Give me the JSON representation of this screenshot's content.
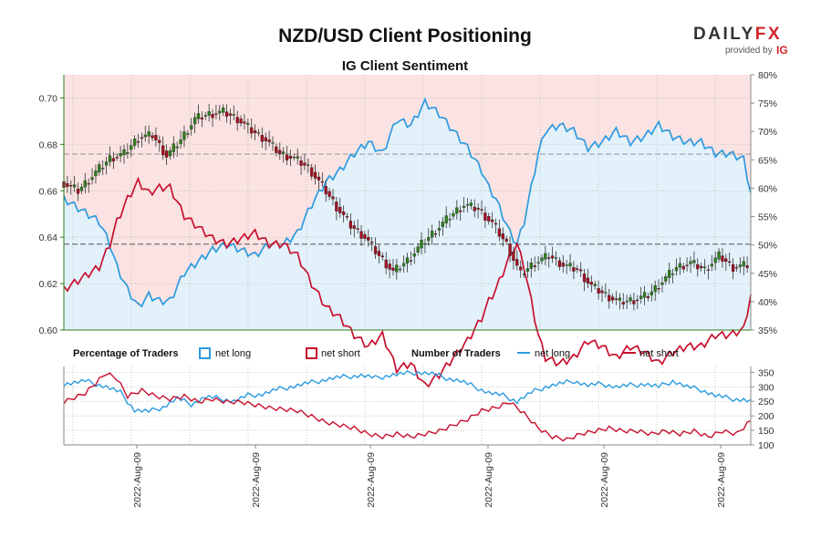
{
  "header": {
    "title": "NZD/USD Client Positioning",
    "subtitle": "IG Client Sentiment"
  },
  "logo": {
    "brand_a": "DAILY",
    "brand_b": "FX",
    "provided_by": "provided by",
    "ig": "IG"
  },
  "colors": {
    "long": "#2b9be0",
    "short": "#c8102e",
    "long_fill": "#e3f1fb",
    "short_fill": "#fbe3e3",
    "price_axis": "#2e7d1e",
    "candle_up": "#2e7d1e",
    "candle_down": "#a01020"
  },
  "legend": {
    "percentage_title": "Percentage of Traders",
    "net_long": "net long",
    "net_short": "net short",
    "number_title": "Number of Traders"
  },
  "chart_data": [
    {
      "type": "candlestick+line",
      "title": "NZD/USD Client Positioning",
      "subtitle": "IG Client Sentiment",
      "price_axis": {
        "ticks": [
          "0.60",
          "0.62",
          "0.64",
          "0.66",
          "0.68",
          "0.70"
        ],
        "range": [
          0.6,
          0.71
        ]
      },
      "percent_axis": {
        "ticks": [
          "35%",
          "40%",
          "45%",
          "50%",
          "55%",
          "60%",
          "65%",
          "70%",
          "75%",
          "80%"
        ],
        "range": [
          35,
          80
        ]
      },
      "reference_lines": {
        "price": 0.637,
        "percent_long": 66
      },
      "grid": true,
      "x_labels": [
        "2022-Aug-09",
        "2022-Aug-09",
        "2022-Aug-09",
        "2022-Aug-09",
        "2022-Aug-09",
        "2022-Aug-09"
      ],
      "price_keypoints": [
        [
          0,
          0.664
        ],
        [
          5,
          0.66
        ],
        [
          10,
          0.668
        ],
        [
          14,
          0.674
        ],
        [
          18,
          0.676
        ],
        [
          22,
          0.683
        ],
        [
          26,
          0.684
        ],
        [
          30,
          0.675
        ],
        [
          34,
          0.682
        ],
        [
          38,
          0.691
        ],
        [
          42,
          0.693
        ],
        [
          46,
          0.694
        ],
        [
          50,
          0.691
        ],
        [
          54,
          0.686
        ],
        [
          58,
          0.682
        ],
        [
          62,
          0.676
        ],
        [
          66,
          0.674
        ],
        [
          70,
          0.67
        ],
        [
          74,
          0.662
        ],
        [
          78,
          0.653
        ],
        [
          82,
          0.645
        ],
        [
          86,
          0.64
        ],
        [
          90,
          0.632
        ],
        [
          94,
          0.625
        ],
        [
          98,
          0.63
        ],
        [
          102,
          0.637
        ],
        [
          106,
          0.643
        ],
        [
          110,
          0.649
        ],
        [
          114,
          0.654
        ],
        [
          118,
          0.652
        ],
        [
          122,
          0.646
        ],
        [
          126,
          0.637
        ],
        [
          130,
          0.624
        ],
        [
          134,
          0.629
        ],
        [
          138,
          0.632
        ],
        [
          142,
          0.628
        ],
        [
          146,
          0.626
        ],
        [
          150,
          0.619
        ],
        [
          154,
          0.615
        ],
        [
          158,
          0.612
        ],
        [
          162,
          0.613
        ],
        [
          166,
          0.615
        ],
        [
          170,
          0.621
        ],
        [
          174,
          0.627
        ],
        [
          178,
          0.629
        ],
        [
          182,
          0.626
        ],
        [
          186,
          0.632
        ],
        [
          190,
          0.627
        ],
        [
          194,
          0.628
        ]
      ],
      "percent_long_keypoints": [
        [
          0,
          58
        ],
        [
          5,
          56
        ],
        [
          10,
          54
        ],
        [
          13,
          50
        ],
        [
          15,
          46
        ],
        [
          18,
          42
        ],
        [
          21,
          39
        ],
        [
          24,
          41
        ],
        [
          27,
          40
        ],
        [
          30,
          40
        ],
        [
          34,
          45
        ],
        [
          38,
          47
        ],
        [
          42,
          49
        ],
        [
          46,
          50
        ],
        [
          50,
          49
        ],
        [
          54,
          48
        ],
        [
          58,
          50
        ],
        [
          62,
          50
        ],
        [
          66,
          52
        ],
        [
          70,
          57
        ],
        [
          74,
          61
        ],
        [
          78,
          63
        ],
        [
          82,
          66
        ],
        [
          86,
          68
        ],
        [
          90,
          66
        ],
        [
          94,
          72
        ],
        [
          98,
          71
        ],
        [
          102,
          75
        ],
        [
          106,
          73
        ],
        [
          110,
          70
        ],
        [
          114,
          67
        ],
        [
          118,
          63
        ],
        [
          120,
          60
        ],
        [
          122,
          58
        ],
        [
          124,
          55
        ],
        [
          126,
          52
        ],
        [
          128,
          50
        ],
        [
          130,
          54
        ],
        [
          132,
          60
        ],
        [
          134,
          66
        ],
        [
          136,
          70
        ],
        [
          140,
          71
        ],
        [
          144,
          70
        ],
        [
          148,
          67
        ],
        [
          152,
          68
        ],
        [
          156,
          70
        ],
        [
          160,
          68
        ],
        [
          164,
          69
        ],
        [
          168,
          71
        ],
        [
          172,
          69
        ],
        [
          176,
          68
        ],
        [
          180,
          68
        ],
        [
          184,
          66
        ],
        [
          188,
          66
        ],
        [
          192,
          65
        ],
        [
          194,
          59
        ]
      ],
      "percent_short_keypoints": [
        [
          0,
          42
        ],
        [
          5,
          44
        ],
        [
          10,
          46
        ],
        [
          13,
          50
        ],
        [
          15,
          54
        ],
        [
          18,
          58
        ],
        [
          21,
          61
        ],
        [
          24,
          59
        ],
        [
          27,
          60
        ],
        [
          30,
          60
        ],
        [
          34,
          55
        ],
        [
          38,
          53
        ],
        [
          42,
          51
        ],
        [
          46,
          50
        ],
        [
          50,
          51
        ],
        [
          54,
          52
        ],
        [
          58,
          50
        ],
        [
          62,
          50
        ],
        [
          66,
          48
        ],
        [
          70,
          43
        ],
        [
          74,
          39
        ],
        [
          78,
          37
        ],
        [
          82,
          34
        ],
        [
          86,
          32
        ],
        [
          90,
          34
        ],
        [
          94,
          28
        ],
        [
          98,
          29
        ],
        [
          102,
          25
        ],
        [
          106,
          27
        ],
        [
          110,
          30
        ],
        [
          114,
          33
        ],
        [
          118,
          37
        ],
        [
          120,
          40
        ],
        [
          122,
          42
        ],
        [
          124,
          45
        ],
        [
          126,
          48
        ],
        [
          128,
          50
        ],
        [
          130,
          46
        ],
        [
          132,
          40
        ],
        [
          134,
          34
        ],
        [
          136,
          30
        ],
        [
          140,
          29
        ],
        [
          144,
          30
        ],
        [
          148,
          33
        ],
        [
          152,
          32
        ],
        [
          156,
          30
        ],
        [
          160,
          32
        ],
        [
          164,
          31
        ],
        [
          168,
          29
        ],
        [
          172,
          31
        ],
        [
          176,
          32
        ],
        [
          180,
          32
        ],
        [
          184,
          34
        ],
        [
          188,
          34
        ],
        [
          192,
          35
        ],
        [
          194,
          41
        ]
      ]
    },
    {
      "type": "line",
      "title": "Number of Traders",
      "y_axis": {
        "ticks": [
          "100",
          "150",
          "200",
          "250",
          "300",
          "350"
        ],
        "range": [
          100,
          370
        ]
      },
      "series": [
        {
          "name": "net long",
          "keypoints": [
            [
              0,
              310
            ],
            [
              6,
              320
            ],
            [
              12,
              300
            ],
            [
              16,
              280
            ],
            [
              20,
              220
            ],
            [
              24,
              215
            ],
            [
              28,
              230
            ],
            [
              32,
              260
            ],
            [
              36,
              240
            ],
            [
              40,
              265
            ],
            [
              44,
              260
            ],
            [
              48,
              250
            ],
            [
              52,
              270
            ],
            [
              56,
              275
            ],
            [
              60,
              290
            ],
            [
              64,
              300
            ],
            [
              68,
              310
            ],
            [
              72,
              320
            ],
            [
              76,
              330
            ],
            [
              80,
              335
            ],
            [
              84,
              340
            ],
            [
              88,
              330
            ],
            [
              92,
              340
            ],
            [
              96,
              345
            ],
            [
              100,
              350
            ],
            [
              104,
              345
            ],
            [
              108,
              330
            ],
            [
              112,
              320
            ],
            [
              116,
              300
            ],
            [
              120,
              280
            ],
            [
              124,
              270
            ],
            [
              128,
              250
            ],
            [
              132,
              280
            ],
            [
              136,
              300
            ],
            [
              140,
              310
            ],
            [
              144,
              320
            ],
            [
              148,
              305
            ],
            [
              152,
              310
            ],
            [
              156,
              300
            ],
            [
              160,
              305
            ],
            [
              164,
              310
            ],
            [
              168,
              300
            ],
            [
              172,
              320
            ],
            [
              176,
              300
            ],
            [
              180,
              290
            ],
            [
              184,
              270
            ],
            [
              188,
              260
            ],
            [
              192,
              255
            ],
            [
              194,
              250
            ]
          ]
        },
        {
          "name": "net short",
          "keypoints": [
            [
              0,
              250
            ],
            [
              6,
              280
            ],
            [
              12,
              350
            ],
            [
              15,
              330
            ],
            [
              18,
              270
            ],
            [
              22,
              290
            ],
            [
              26,
              270
            ],
            [
              30,
              260
            ],
            [
              34,
              270
            ],
            [
              38,
              250
            ],
            [
              42,
              260
            ],
            [
              46,
              250
            ],
            [
              50,
              250
            ],
            [
              54,
              240
            ],
            [
              58,
              230
            ],
            [
              62,
              225
            ],
            [
              66,
              220
            ],
            [
              70,
              200
            ],
            [
              74,
              180
            ],
            [
              78,
              170
            ],
            [
              82,
              160
            ],
            [
              86,
              140
            ],
            [
              90,
              130
            ],
            [
              94,
              140
            ],
            [
              98,
              130
            ],
            [
              102,
              140
            ],
            [
              106,
              150
            ],
            [
              110,
              170
            ],
            [
              114,
              190
            ],
            [
              118,
              220
            ],
            [
              122,
              230
            ],
            [
              126,
              250
            ],
            [
              130,
              210
            ],
            [
              134,
              160
            ],
            [
              138,
              130
            ],
            [
              142,
              120
            ],
            [
              146,
              140
            ],
            [
              150,
              150
            ],
            [
              154,
              160
            ],
            [
              158,
              150
            ],
            [
              162,
              150
            ],
            [
              166,
              140
            ],
            [
              170,
              150
            ],
            [
              174,
              140
            ],
            [
              178,
              150
            ],
            [
              182,
              130
            ],
            [
              186,
              150
            ],
            [
              190,
              140
            ],
            [
              194,
              185
            ]
          ]
        }
      ]
    }
  ]
}
